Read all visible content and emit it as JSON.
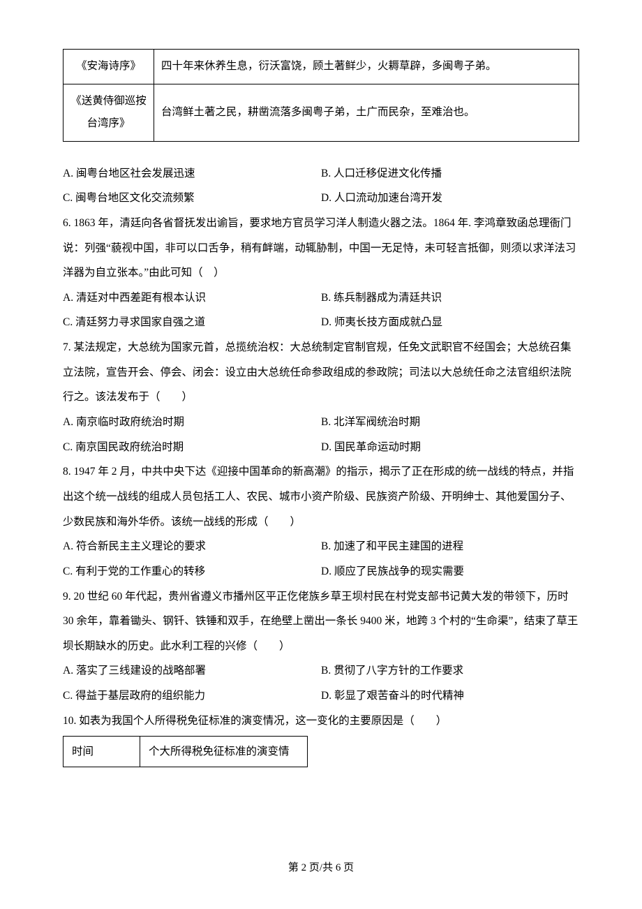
{
  "excerpt_table": {
    "rows": [
      {
        "title": "《安海诗序》",
        "content": "四十年来休养生息，衍沃富饶，顾土著鲜少，火耨草辟，多闽粤子弟。"
      },
      {
        "title": "《送黄侍御巡按台湾序》",
        "content": "台湾鲜土著之民，耕凿流落多闽粤子弟，土广而民杂，至难治也。"
      }
    ]
  },
  "q5_options": {
    "A": "A. 闽粤台地区社会发展迅速",
    "B": "B. 人口迁移促进文化传播",
    "C": "C. 闽粤台地区文化交流频繁",
    "D": "D. 人口流动加速台湾开发"
  },
  "q6": {
    "text": "6. 1863 年，清廷向各省督抚发出谕旨，要求地方官员学习洋人制造火器之法。1864 年. 李鸿章致函总理衙门说：列强“藐视中国，非可以口舌争，稍有衅端，动辄胁制，中国一无足恃，未可轻言抵御，则须以求洋法习洋器为自立张本。”由此可知（　）",
    "A": "A. 清廷对中西差距有根本认识",
    "B": "B. 练兵制器成为清廷共识",
    "C": "C. 清廷努力寻求国家自强之道",
    "D": "D. 师夷长技方面成就凸显"
  },
  "q7": {
    "text": "7. 某法规定，大总统为国家元首，总揽统治权：大总统制定官制官规，任免文武职官不经国会；大总统召集立法院，宣告开会、停会、闭会：设立由大总统任命参政组成的参政院；司法以大总统任命之法官组织法院行之。该法发布于（　　）",
    "A": "A. 南京临时政府统治时期",
    "B": "B. 北洋军阀统治时期",
    "C": "C. 南京国民政府统治时期",
    "D": "D. 国民革命运动时期"
  },
  "q8": {
    "text": "8. 1947 年 2 月，中共中央下达《迎接中国革命的新高潮》的指示，揭示了正在形成的统一战线的特点，并指出这个统一战线的组成人员包括工人、农民、城市小资产阶级、民族资产阶级、开明绅士、其他爱国分子、少数民族和海外华侨。该统一战线的形成（　　）",
    "A": "A. 符合新民主主义理论的要求",
    "B": "B. 加速了和平民主建国的进程",
    "C": "C. 有利于党的工作重心的转移",
    "D": "D. 顺应了民族战争的现实需要"
  },
  "q9": {
    "text": "9. 20 世纪 60 年代起，贵州省遵义市播州区平正仡佬族乡草王坝村民在村党支部书记黄大发的带领下，历时30 余年，靠着锄头、钢钎、铁锤和双手，在绝壁上凿出一条长 9400 米，地跨 3 个村的“生命渠”，结束了草王坝长期缺水的历史。此水利工程的兴修（　　）",
    "A": "A. 落实了三线建设的战略部署",
    "B": "B. 贯彻了八字方针的工作要求",
    "C": "C. 得益于基层政府的组织能力",
    "D": "D. 彰显了艰苦奋斗的时代精神"
  },
  "q10": {
    "text": "10. 如表为我国个人所得税免征标准的演变情况，这一变化的主要原因是（　　）",
    "table": {
      "header_col1": "时间",
      "header_col2": "个大所得税免征标准的演变情"
    }
  },
  "footer": "第 2 页/共 6 页"
}
